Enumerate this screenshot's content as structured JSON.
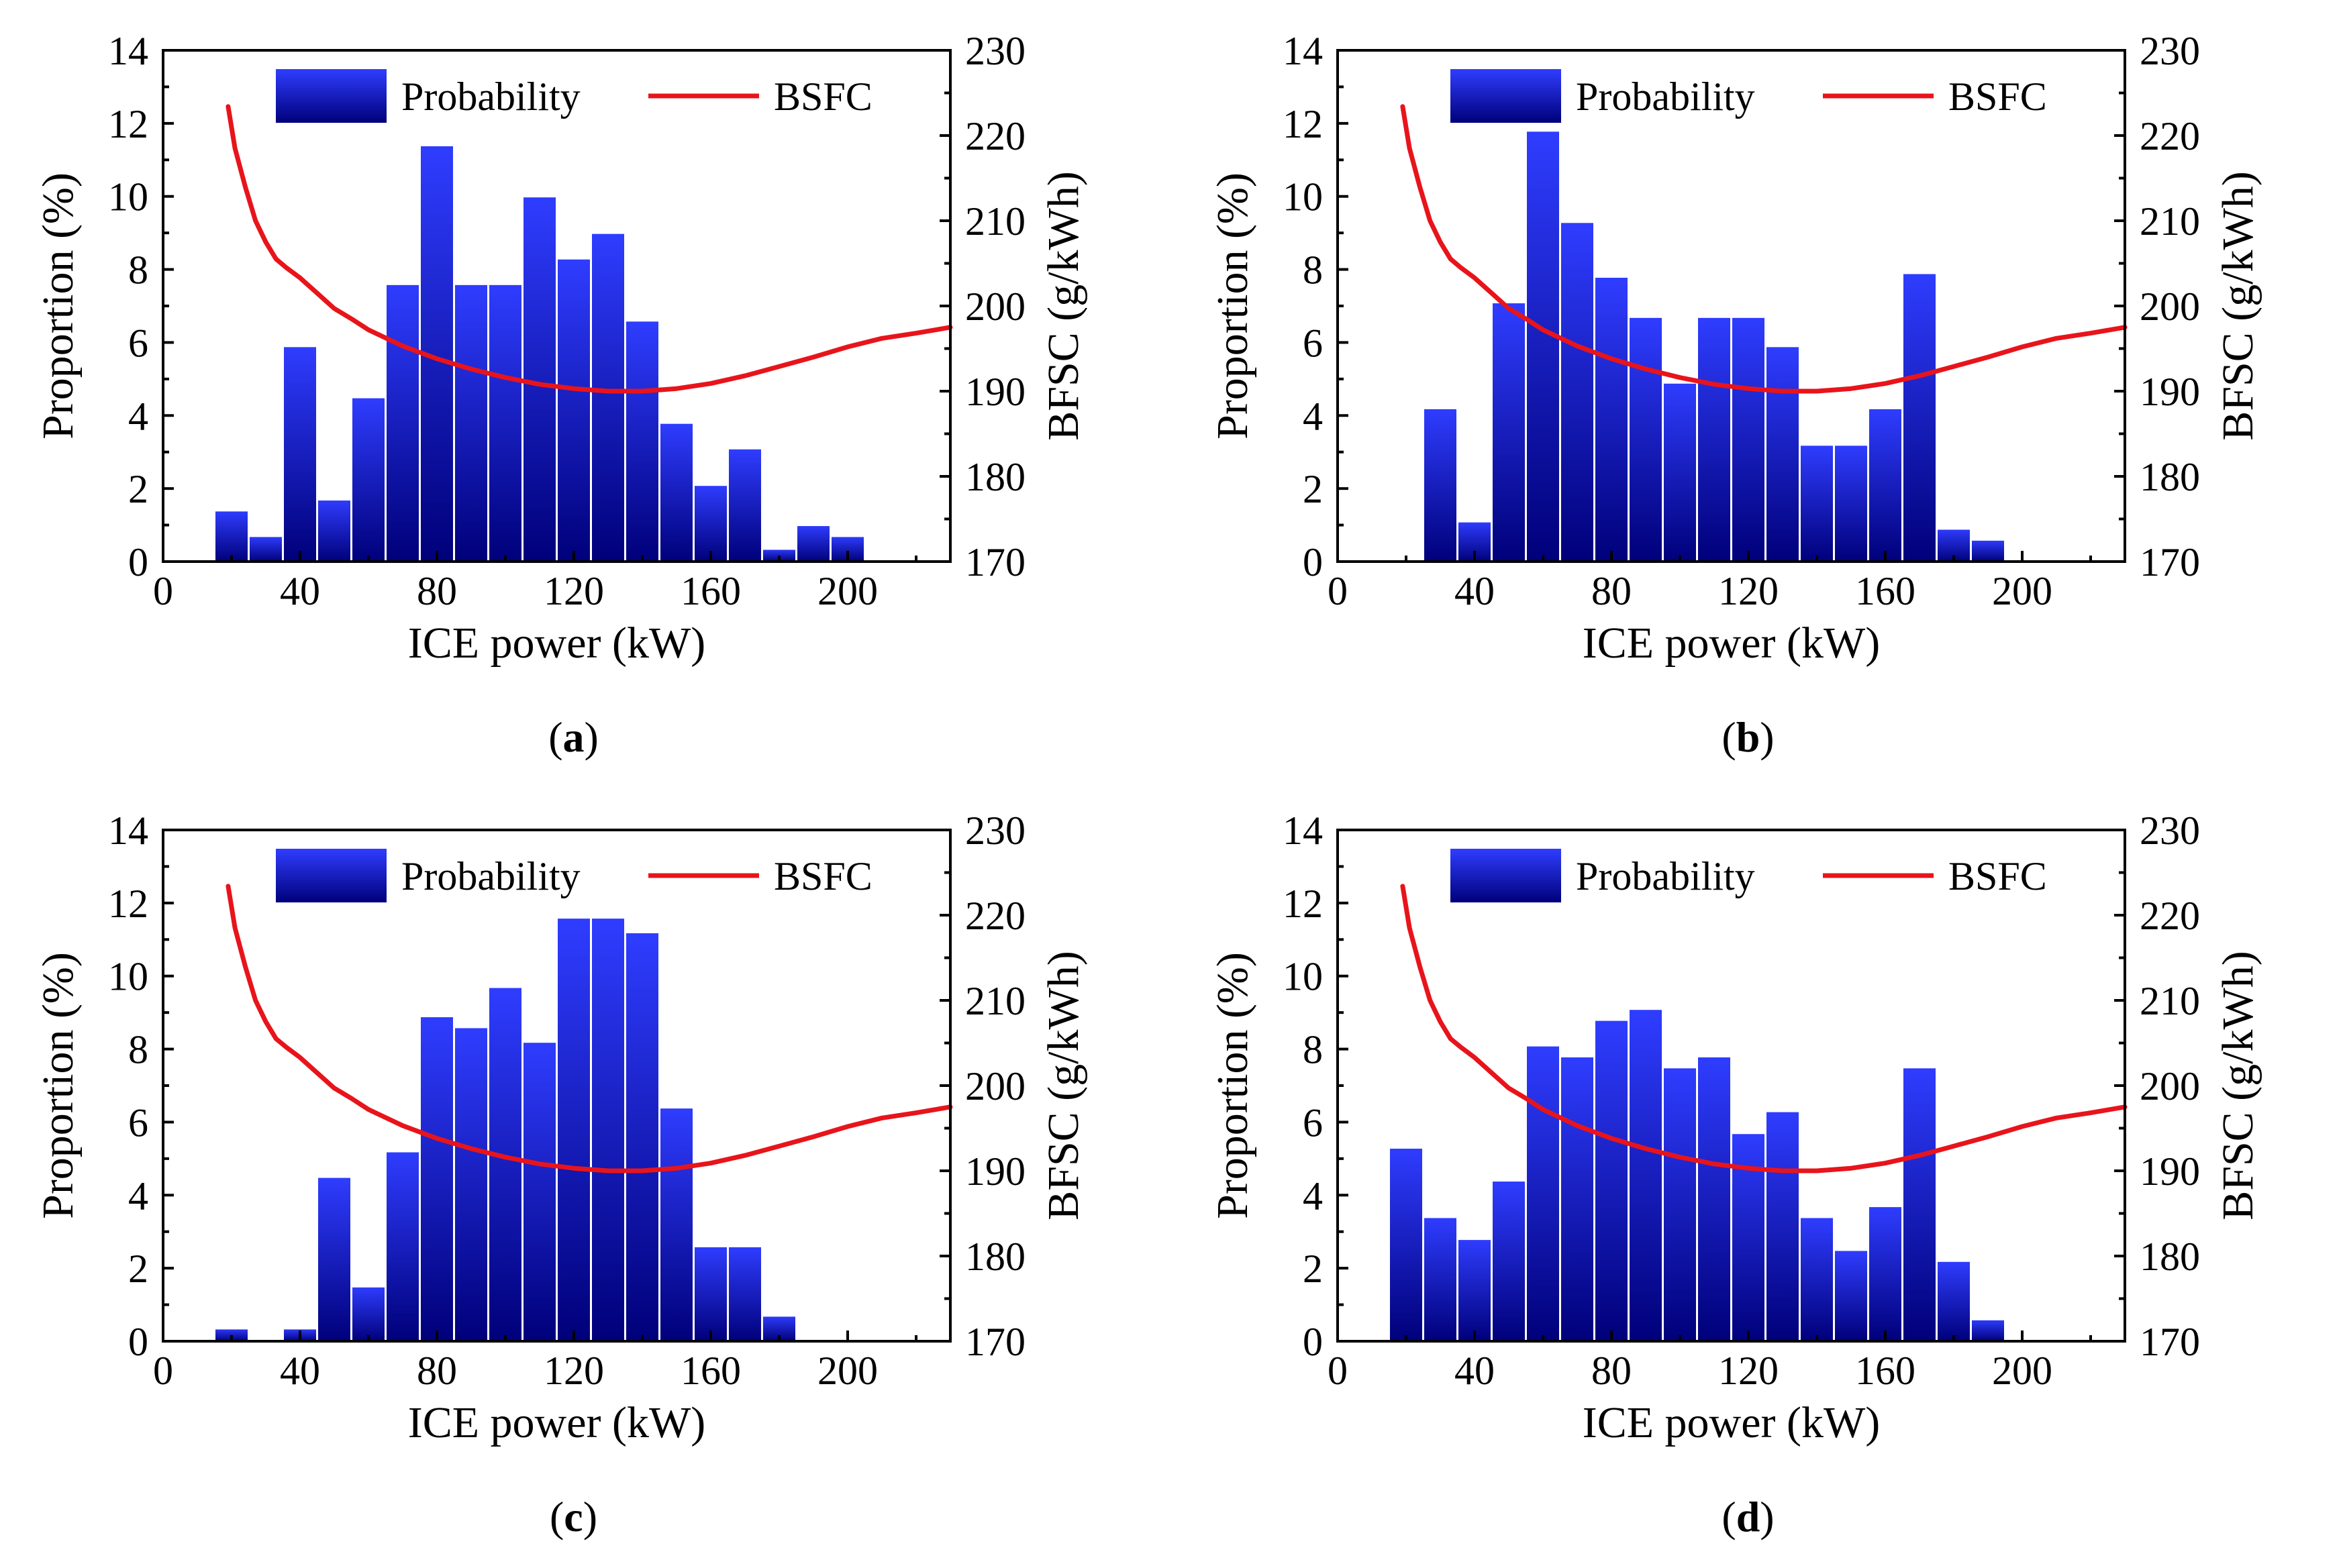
{
  "colors": {
    "bar_top": "#2f3dff",
    "bar_bottom": "#00007a",
    "line": "#e8141b"
  },
  "chart_data": [
    {
      "type": "bar",
      "panel_label": "a",
      "xlabel": "ICE power (kW)",
      "ylabel": "Proportion (%)",
      "y2label": "BFSC (g/kWh)",
      "xlim": [
        0,
        230
      ],
      "ylim": [
        0,
        14
      ],
      "y2lim": [
        170,
        230
      ],
      "xticks": [
        0,
        40,
        80,
        120,
        160,
        200
      ],
      "yticks": [
        0,
        2,
        4,
        6,
        8,
        10,
        12,
        14
      ],
      "y2ticks": [
        170,
        180,
        190,
        200,
        210,
        220,
        230
      ],
      "legend": [
        "Probability",
        "BSFC"
      ],
      "bin_width": 10,
      "bin_centers": [
        20,
        30,
        40,
        50,
        60,
        70,
        80,
        90,
        100,
        110,
        120,
        130,
        140,
        150,
        160,
        170,
        180,
        190,
        200
      ],
      "values": [
        1.4,
        0.7,
        5.9,
        1.7,
        4.5,
        7.6,
        11.4,
        7.6,
        7.6,
        10.0,
        8.3,
        9.0,
        6.6,
        3.8,
        2.1,
        3.1,
        0.35,
        1.0,
        0.7
      ],
      "bsfc": {
        "x": [
          19,
          21,
          24,
          27,
          30,
          33,
          36,
          40,
          45,
          50,
          55,
          60,
          70,
          80,
          90,
          100,
          110,
          120,
          130,
          140,
          150,
          160,
          170,
          180,
          190,
          200,
          210,
          220,
          230
        ],
        "y": [
          223.4,
          218.5,
          214.0,
          210.0,
          207.5,
          205.5,
          204.5,
          203.3,
          201.5,
          199.7,
          198.5,
          197.2,
          195.3,
          193.8,
          192.6,
          191.6,
          190.8,
          190.3,
          190.0,
          190.0,
          190.3,
          190.9,
          191.8,
          192.9,
          194.0,
          195.2,
          196.2,
          196.8,
          197.5
        ]
      }
    },
    {
      "type": "bar",
      "panel_label": "b",
      "xlabel": "ICE power (kW)",
      "ylabel": "Proportion (%)",
      "y2label": "BFSC (g/kWh)",
      "xlim": [
        0,
        230
      ],
      "ylim": [
        0,
        14
      ],
      "y2lim": [
        170,
        230
      ],
      "xticks": [
        0,
        40,
        80,
        120,
        160,
        200
      ],
      "yticks": [
        0,
        2,
        4,
        6,
        8,
        10,
        12,
        14
      ],
      "y2ticks": [
        170,
        180,
        190,
        200,
        210,
        220,
        230
      ],
      "legend": [
        "Probability",
        "BSFC"
      ],
      "bin_width": 10,
      "bin_centers": [
        30,
        40,
        50,
        60,
        70,
        80,
        90,
        100,
        110,
        120,
        130,
        140,
        150,
        160,
        170,
        180,
        190
      ],
      "values": [
        4.2,
        1.1,
        7.1,
        11.8,
        9.3,
        7.8,
        6.7,
        4.9,
        6.7,
        6.7,
        5.9,
        3.2,
        3.2,
        4.2,
        7.9,
        0.9,
        0.6
      ],
      "bsfc": {
        "x": [
          19,
          21,
          24,
          27,
          30,
          33,
          36,
          40,
          45,
          50,
          55,
          60,
          70,
          80,
          90,
          100,
          110,
          120,
          130,
          140,
          150,
          160,
          170,
          180,
          190,
          200,
          210,
          220,
          230
        ],
        "y": [
          223.4,
          218.5,
          214.0,
          210.0,
          207.5,
          205.5,
          204.5,
          203.3,
          201.5,
          199.7,
          198.5,
          197.2,
          195.3,
          193.8,
          192.6,
          191.6,
          190.8,
          190.3,
          190.0,
          190.0,
          190.3,
          190.9,
          191.8,
          192.9,
          194.0,
          195.2,
          196.2,
          196.8,
          197.5
        ]
      }
    },
    {
      "type": "bar",
      "panel_label": "c",
      "xlabel": "ICE power (kW)",
      "ylabel": "Proportion (%)",
      "y2label": "BFSC (g/kWh)",
      "xlim": [
        0,
        230
      ],
      "ylim": [
        0,
        14
      ],
      "y2lim": [
        170,
        230
      ],
      "xticks": [
        0,
        40,
        80,
        120,
        160,
        200
      ],
      "yticks": [
        0,
        2,
        4,
        6,
        8,
        10,
        12,
        14
      ],
      "y2ticks": [
        170,
        180,
        190,
        200,
        210,
        220,
        230
      ],
      "legend": [
        "Probability",
        "BSFC"
      ],
      "bin_width": 10,
      "bin_centers": [
        20,
        40,
        50,
        60,
        70,
        80,
        90,
        100,
        110,
        120,
        130,
        140,
        150,
        160,
        170,
        180
      ],
      "values": [
        0.35,
        0.35,
        4.5,
        1.5,
        5.2,
        8.9,
        8.6,
        9.7,
        8.2,
        11.6,
        11.6,
        11.2,
        6.4,
        2.6,
        2.6,
        0.7
      ],
      "bsfc": {
        "x": [
          19,
          21,
          24,
          27,
          30,
          33,
          36,
          40,
          45,
          50,
          55,
          60,
          70,
          80,
          90,
          100,
          110,
          120,
          130,
          140,
          150,
          160,
          170,
          180,
          190,
          200,
          210,
          220,
          230
        ],
        "y": [
          223.4,
          218.5,
          214.0,
          210.0,
          207.5,
          205.5,
          204.5,
          203.3,
          201.5,
          199.7,
          198.5,
          197.2,
          195.3,
          193.8,
          192.6,
          191.6,
          190.8,
          190.3,
          190.0,
          190.0,
          190.3,
          190.9,
          191.8,
          192.9,
          194.0,
          195.2,
          196.2,
          196.8,
          197.5
        ]
      }
    },
    {
      "type": "bar",
      "panel_label": "d",
      "xlabel": "ICE power (kW)",
      "ylabel": "Proportion (%)",
      "y2label": "BFSC (g/kWh)",
      "xlim": [
        0,
        230
      ],
      "ylim": [
        0,
        14
      ],
      "y2lim": [
        170,
        230
      ],
      "xticks": [
        0,
        40,
        80,
        120,
        160,
        200
      ],
      "yticks": [
        0,
        2,
        4,
        6,
        8,
        10,
        12,
        14
      ],
      "y2ticks": [
        170,
        180,
        190,
        200,
        210,
        220,
        230
      ],
      "legend": [
        "Probability",
        "BSFC"
      ],
      "bin_width": 10,
      "bin_centers": [
        20,
        30,
        40,
        50,
        60,
        70,
        80,
        90,
        100,
        110,
        120,
        130,
        140,
        150,
        160,
        170,
        180,
        190
      ],
      "values": [
        5.3,
        3.4,
        2.8,
        4.4,
        8.1,
        7.8,
        8.8,
        9.1,
        7.5,
        7.8,
        5.7,
        6.3,
        3.4,
        2.5,
        3.7,
        7.5,
        2.2,
        0.6
      ],
      "bsfc": {
        "x": [
          19,
          21,
          24,
          27,
          30,
          33,
          36,
          40,
          45,
          50,
          55,
          60,
          70,
          80,
          90,
          100,
          110,
          120,
          130,
          140,
          150,
          160,
          170,
          180,
          190,
          200,
          210,
          220,
          230
        ],
        "y": [
          223.4,
          218.5,
          214.0,
          210.0,
          207.5,
          205.5,
          204.5,
          203.3,
          201.5,
          199.7,
          198.5,
          197.2,
          195.3,
          193.8,
          192.6,
          191.6,
          190.8,
          190.3,
          190.0,
          190.0,
          190.3,
          190.9,
          191.8,
          192.9,
          194.0,
          195.2,
          196.2,
          196.8,
          197.5
        ]
      }
    }
  ]
}
